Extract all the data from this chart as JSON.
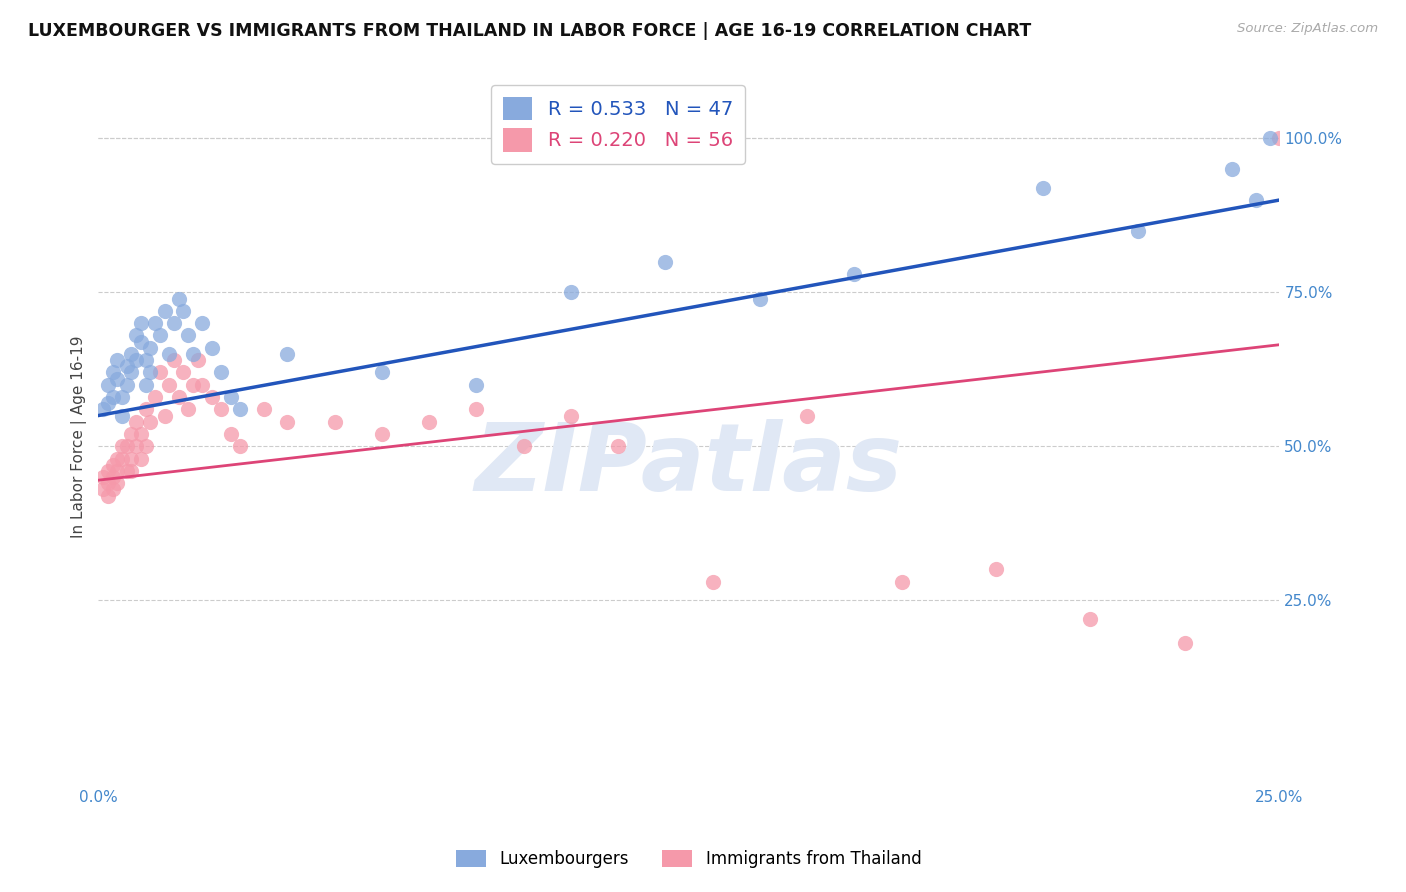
{
  "title": "LUXEMBOURGER VS IMMIGRANTS FROM THAILAND IN LABOR FORCE | AGE 16-19 CORRELATION CHART",
  "source": "Source: ZipAtlas.com",
  "ylabel": "In Labor Force | Age 16-19",
  "legend_label_1": "Luxembourgers",
  "legend_label_2": "Immigrants from Thailand",
  "R1": 0.533,
  "N1": 47,
  "R2": 0.22,
  "N2": 56,
  "color1": "#88AADD",
  "color2": "#F599AA",
  "line_color1": "#2255BB",
  "line_color2": "#DD4477",
  "watermark": "ZIPatlas",
  "xlim": [
    0.0,
    0.25
  ],
  "ylim": [
    -0.05,
    1.08
  ],
  "xticks": [
    0.0,
    0.05,
    0.1,
    0.15,
    0.2,
    0.25
  ],
  "xtick_labels": [
    "0.0%",
    "",
    "",
    "",
    "",
    "25.0%"
  ],
  "yticks": [
    0.25,
    0.5,
    0.75,
    1.0
  ],
  "ytick_labels": [
    "25.0%",
    "50.0%",
    "75.0%",
    "100.0%"
  ],
  "blue_x": [
    0.001,
    0.002,
    0.002,
    0.003,
    0.003,
    0.004,
    0.004,
    0.005,
    0.005,
    0.006,
    0.006,
    0.007,
    0.007,
    0.008,
    0.008,
    0.009,
    0.009,
    0.01,
    0.01,
    0.011,
    0.011,
    0.012,
    0.013,
    0.014,
    0.015,
    0.016,
    0.017,
    0.018,
    0.019,
    0.02,
    0.022,
    0.024,
    0.026,
    0.028,
    0.03,
    0.04,
    0.06,
    0.08,
    0.1,
    0.12,
    0.14,
    0.16,
    0.2,
    0.22,
    0.24,
    0.245,
    0.248
  ],
  "blue_y": [
    0.56,
    0.6,
    0.57,
    0.62,
    0.58,
    0.64,
    0.61,
    0.55,
    0.58,
    0.63,
    0.6,
    0.65,
    0.62,
    0.68,
    0.64,
    0.7,
    0.67,
    0.6,
    0.64,
    0.62,
    0.66,
    0.7,
    0.68,
    0.72,
    0.65,
    0.7,
    0.74,
    0.72,
    0.68,
    0.65,
    0.7,
    0.66,
    0.62,
    0.58,
    0.56,
    0.65,
    0.62,
    0.6,
    0.75,
    0.8,
    0.74,
    0.78,
    0.92,
    0.85,
    0.95,
    0.9,
    1.0
  ],
  "pink_x": [
    0.001,
    0.001,
    0.002,
    0.002,
    0.002,
    0.003,
    0.003,
    0.003,
    0.004,
    0.004,
    0.004,
    0.005,
    0.005,
    0.006,
    0.006,
    0.007,
    0.007,
    0.007,
    0.008,
    0.008,
    0.009,
    0.009,
    0.01,
    0.01,
    0.011,
    0.012,
    0.013,
    0.014,
    0.015,
    0.016,
    0.017,
    0.018,
    0.019,
    0.02,
    0.021,
    0.022,
    0.024,
    0.026,
    0.028,
    0.03,
    0.035,
    0.04,
    0.05,
    0.06,
    0.07,
    0.08,
    0.09,
    0.1,
    0.11,
    0.13,
    0.15,
    0.17,
    0.19,
    0.21,
    0.23,
    0.25
  ],
  "pink_y": [
    0.45,
    0.43,
    0.46,
    0.44,
    0.42,
    0.47,
    0.45,
    0.43,
    0.48,
    0.46,
    0.44,
    0.5,
    0.48,
    0.46,
    0.5,
    0.52,
    0.48,
    0.46,
    0.54,
    0.5,
    0.48,
    0.52,
    0.56,
    0.5,
    0.54,
    0.58,
    0.62,
    0.55,
    0.6,
    0.64,
    0.58,
    0.62,
    0.56,
    0.6,
    0.64,
    0.6,
    0.58,
    0.56,
    0.52,
    0.5,
    0.56,
    0.54,
    0.54,
    0.52,
    0.54,
    0.56,
    0.5,
    0.55,
    0.5,
    0.28,
    0.55,
    0.28,
    0.3,
    0.22,
    0.18,
    1.0
  ],
  "title_color": "#111111",
  "tick_label_color": "#4488CC",
  "grid_color": "#CCCCCC",
  "watermark_color": "#E0E8F5",
  "watermark_fontsize": 68,
  "background_color": "#FFFFFF"
}
